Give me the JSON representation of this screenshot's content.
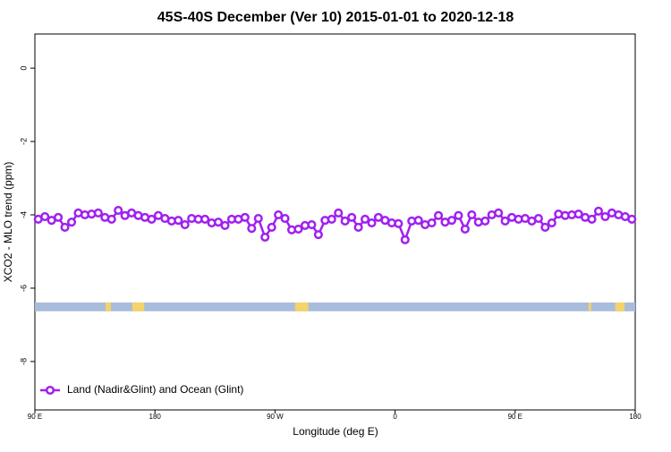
{
  "chart_data": {
    "type": "line",
    "title": "45S-40S December (Ver 10)   2015-01-01 to 2020-12-18",
    "x_label": "Longitude (deg E)",
    "y_label": "XCO2 - MLO trend (ppm)",
    "xlim": [
      90,
      540
    ],
    "ylim": [
      -9.32,
      0.93
    ],
    "xticks": [
      {
        "value": 90,
        "label": "90 E"
      },
      180,
      {
        "value": 270,
        "label": "90 W"
      },
      {
        "value": 360,
        "label": "0"
      },
      {
        "value": 450,
        "label": "90 E"
      },
      {
        "value": 540,
        "label": "180"
      }
    ],
    "yticks": [
      0,
      -2,
      -4,
      -6,
      -8
    ],
    "legend": "bottom-left",
    "x": [
      92.5,
      97.5,
      102.5,
      107.5,
      112.5,
      117.5,
      122.5,
      127.5,
      132.5,
      137.5,
      142.5,
      147.5,
      152.5,
      157.5,
      162.5,
      167.5,
      172.5,
      177.5,
      182.5,
      187.5,
      192.5,
      197.5,
      202.5,
      207.5,
      212.5,
      217.5,
      222.5,
      227.5,
      232.5,
      237.5,
      242.5,
      247.5,
      252.5,
      257.5,
      262.5,
      267.5,
      272.5,
      277.5,
      282.5,
      287.5,
      292.5,
      297.5,
      302.5,
      307.5,
      312.5,
      317.5,
      322.5,
      327.5,
      332.5,
      337.5,
      342.5,
      347.5,
      352.5,
      357.5,
      362.5,
      367.5,
      372.5,
      377.5,
      382.5,
      387.5,
      392.5,
      397.5,
      402.5,
      407.5,
      412.5,
      417.5,
      422.5,
      427.5,
      432.5,
      437.5,
      442.5,
      447.5,
      452.5,
      457.5,
      462.5,
      467.5,
      472.5,
      477.5,
      482.5,
      487.5,
      492.5,
      497.5,
      502.5,
      507.5,
      512.5,
      517.5,
      522.5,
      527.5,
      532.5,
      537.5
    ],
    "series": [
      {
        "name": "Land (Nadir&Glint) and Ocean (Glint)",
        "color": "#a020f0",
        "values": [
          -4.12,
          -4.05,
          -4.15,
          -4.07,
          -4.34,
          -4.2,
          -3.95,
          -4.0,
          -3.98,
          -3.95,
          -4.07,
          -4.12,
          -3.88,
          -4.02,
          -3.95,
          -4.02,
          -4.07,
          -4.12,
          -4.02,
          -4.1,
          -4.17,
          -4.15,
          -4.27,
          -4.1,
          -4.12,
          -4.12,
          -4.22,
          -4.2,
          -4.29,
          -4.12,
          -4.12,
          -4.07,
          -4.37,
          -4.1,
          -4.61,
          -4.34,
          -4.0,
          -4.1,
          -4.41,
          -4.39,
          -4.29,
          -4.27,
          -4.54,
          -4.15,
          -4.12,
          -3.95,
          -4.17,
          -4.07,
          -4.34,
          -4.12,
          -4.22,
          -4.07,
          -4.15,
          -4.22,
          -4.24,
          -4.68,
          -4.17,
          -4.15,
          -4.27,
          -4.22,
          -4.02,
          -4.2,
          -4.15,
          -4.02,
          -4.39,
          -4.0,
          -4.2,
          -4.17,
          -4.0,
          -3.95,
          -4.17,
          -4.07,
          -4.12,
          -4.1,
          -4.17,
          -4.1,
          -4.34,
          -4.22,
          -3.98,
          -4.02,
          -4.0,
          -3.98,
          -4.07,
          -4.12,
          -3.9,
          -4.05,
          -3.95,
          -4.0,
          -4.05,
          -4.12
        ]
      }
    ],
    "coverage_band": {
      "ylim": [
        -6.63,
        -6.39
      ],
      "ocean_color": "#a8bcdc",
      "land_color": "#f5d26a",
      "land_ranges": [
        [
          143,
          147
        ],
        [
          163,
          172
        ],
        [
          285,
          295
        ],
        [
          505,
          507
        ],
        [
          525,
          532
        ]
      ]
    }
  }
}
